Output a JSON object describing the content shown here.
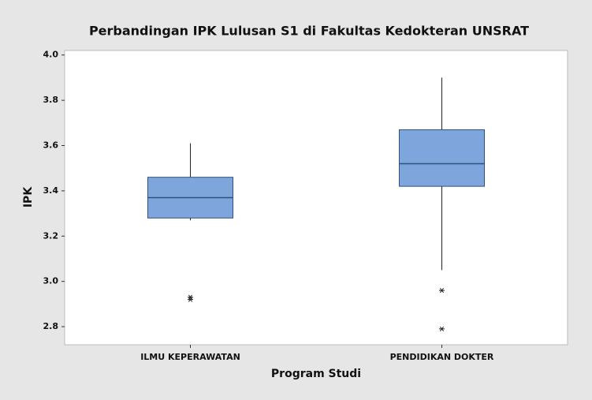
{
  "chart_data": {
    "type": "box",
    "title": "Perbandingan IPK Lulusan S1 di Fakultas Kedokteran UNSRAT",
    "x_label": "Program Studi",
    "y_label": "IPK",
    "categories": [
      "ILMU KEPERAWATAN",
      "PENDIDIKAN DOKTER"
    ],
    "boxes": [
      {
        "whislo": 3.27,
        "q1": 3.28,
        "med": 3.37,
        "q3": 3.46,
        "whishi": 3.61,
        "fliers": [
          2.93,
          2.92
        ]
      },
      {
        "whislo": 3.05,
        "q1": 3.42,
        "med": 3.52,
        "q3": 3.67,
        "whishi": 3.9,
        "fliers": [
          2.96,
          2.79
        ]
      }
    ],
    "color": "#7ea6dc",
    "ylim": [
      2.72,
      4.02
    ],
    "yticks": [
      2.8,
      {
        "value": 3,
        "label": "3.0"
      },
      3.2,
      3.4,
      3.6,
      3.8,
      {
        "value": 4,
        "label": "4.0"
      }
    ],
    "grid": false
  }
}
